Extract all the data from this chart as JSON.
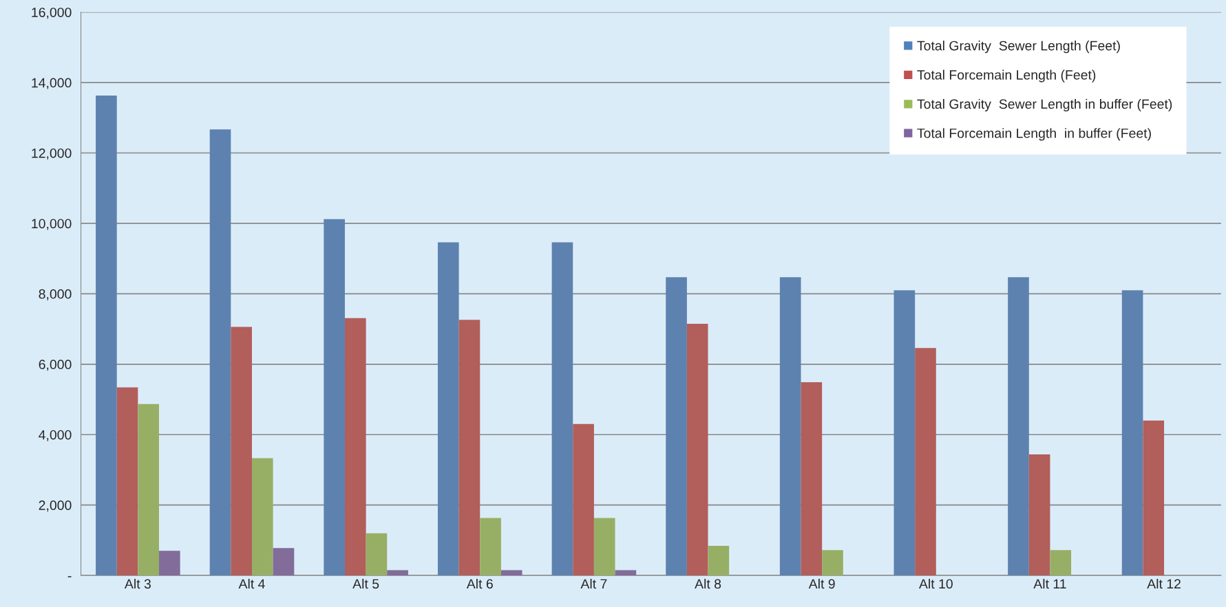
{
  "chart_data": {
    "type": "bar",
    "categories": [
      "Alt 3",
      "Alt 4",
      "Alt 5",
      "Alt 6",
      "Alt 7",
      "Alt 8",
      "Alt 9",
      "Alt 10",
      "Alt 11",
      "Alt 12"
    ],
    "series": [
      {
        "name": "Total Gravity  Sewer Length (Feet)",
        "color": "#4f81bd",
        "values": [
          13630,
          12670,
          10120,
          9460,
          9460,
          8470,
          8470,
          8100,
          8470,
          8100
        ]
      },
      {
        "name": "Total Forcemain Length (Feet)",
        "color": "#c0504d",
        "values": [
          5340,
          7060,
          7310,
          7260,
          4300,
          7150,
          5490,
          6460,
          3440,
          4400
        ]
      },
      {
        "name": "Total Gravity  Sewer Length in buffer (Feet)",
        "color": "#9bbb59",
        "values": [
          4870,
          3330,
          1200,
          1630,
          1630,
          840,
          720,
          0,
          720,
          0
        ]
      },
      {
        "name": "Total Forcemain Length  in buffer (Feet)",
        "color": "#8064a2",
        "values": [
          700,
          780,
          150,
          150,
          150,
          0,
          0,
          0,
          0,
          0
        ]
      }
    ],
    "ylim": [
      0,
      16000
    ],
    "yticks": [
      {
        "value": 0,
        "label": "-"
      },
      {
        "value": 2000,
        "label": "2,000"
      },
      {
        "value": 4000,
        "label": "4,000"
      },
      {
        "value": 6000,
        "label": "6,000"
      },
      {
        "value": 8000,
        "label": "8,000"
      },
      {
        "value": 10000,
        "label": "10,000"
      },
      {
        "value": 12000,
        "label": "12,000"
      },
      {
        "value": 14000,
        "label": "14,000"
      },
      {
        "value": 16000,
        "label": "16,000"
      }
    ],
    "grid": "y",
    "legend": "top right"
  }
}
